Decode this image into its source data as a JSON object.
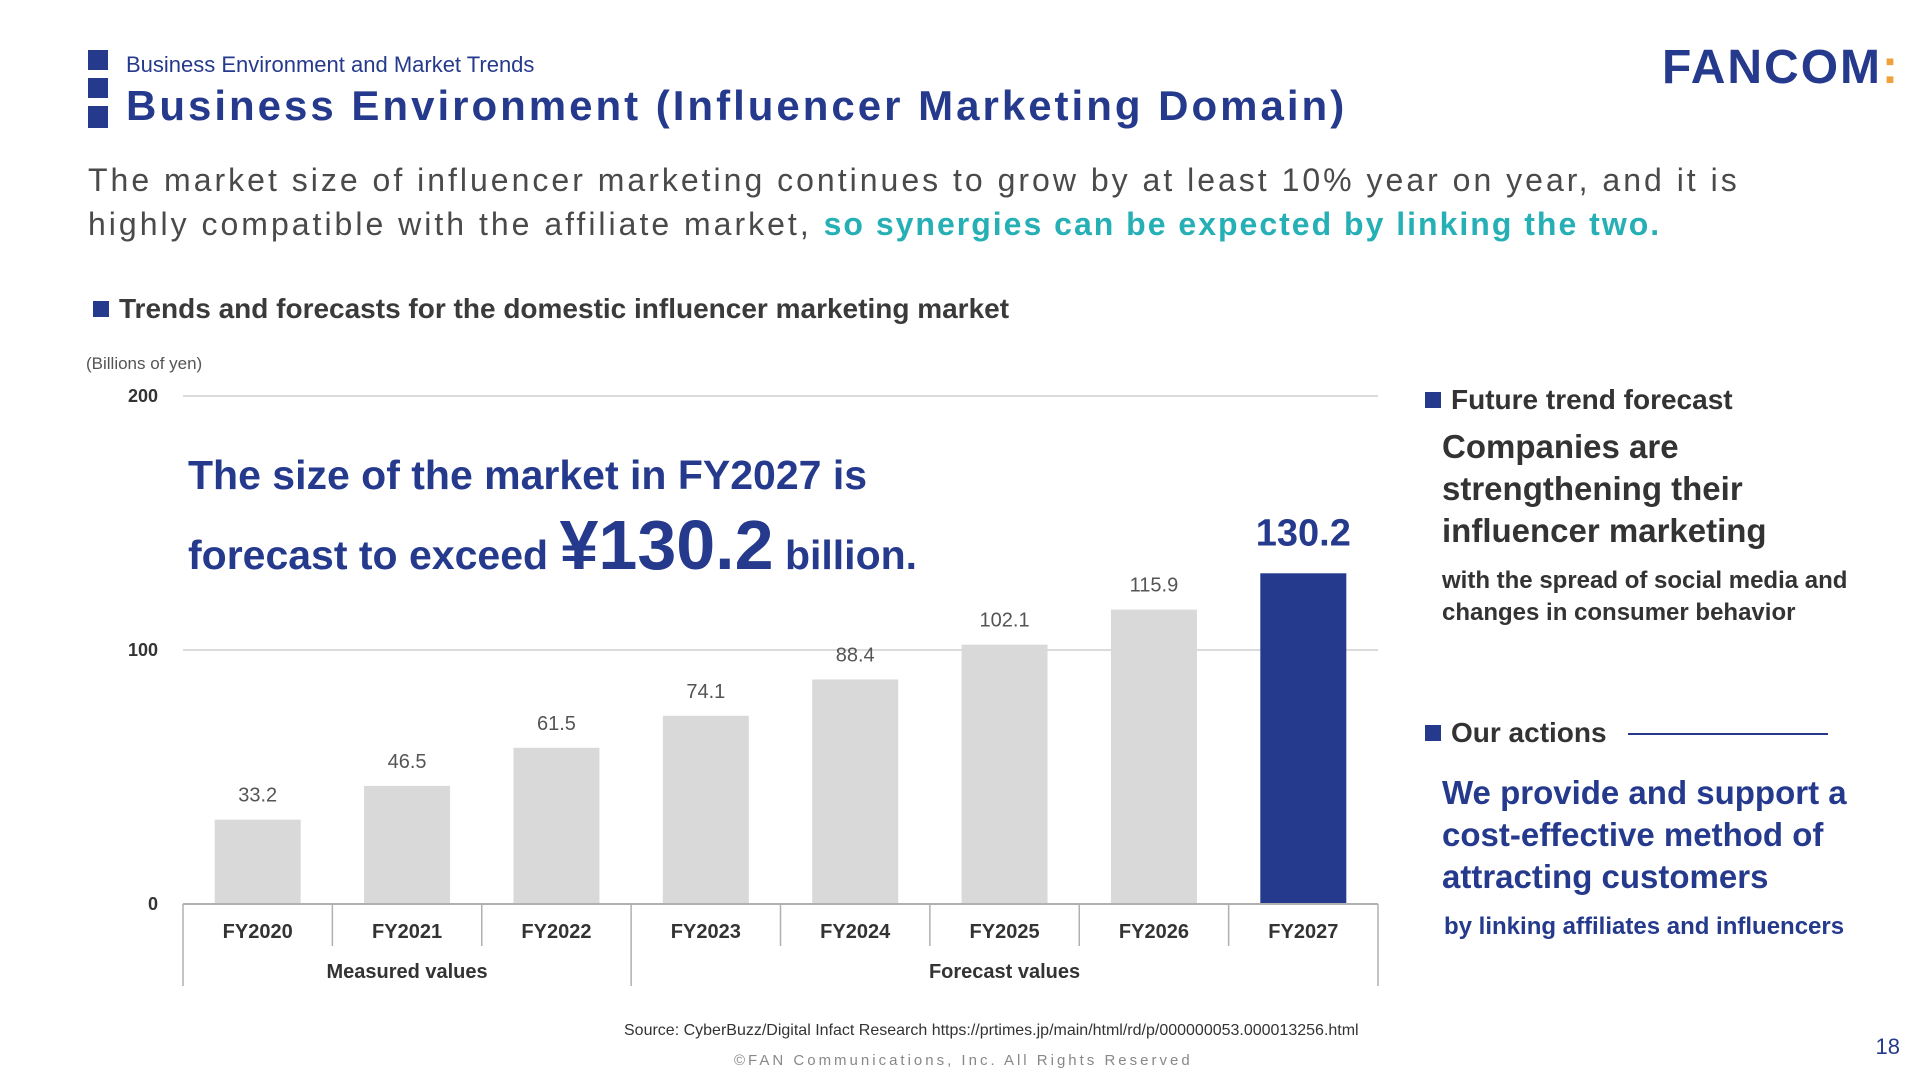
{
  "header": {
    "breadcrumb": "Business Environment and Market Trends",
    "title": "Business Environment (Influencer Marketing Domain)",
    "logo_text": "FANCOM",
    "logo_accent": ":"
  },
  "lead": {
    "text": "The market size of influencer marketing continues to grow by at least 10% year on year, and it is highly compatible with the affiliate market, ",
    "highlight": "so synergies can be expected by linking the two."
  },
  "section_title": "Trends and forecasts for the domestic influencer marketing market",
  "unit_label": "(Billions of yen)",
  "headline": {
    "line1": "The size of the market in FY2027 is",
    "pre": "forecast to exceed ",
    "amount": "¥130.2",
    "post": " billion."
  },
  "chart_data": {
    "type": "bar",
    "categories": [
      "FY2020",
      "FY2021",
      "FY2022",
      "FY2023",
      "FY2024",
      "FY2025",
      "FY2026",
      "FY2027"
    ],
    "values": [
      33.2,
      46.5,
      61.5,
      74.1,
      88.4,
      102.1,
      115.9,
      130.2
    ],
    "data_labels": [
      "33.2",
      "46.5",
      "61.5",
      "74.1",
      "88.4",
      "102.1",
      "115.9",
      "130.2"
    ],
    "highlight_index": 7,
    "ylim": [
      0,
      200
    ],
    "yticks": [
      0,
      100,
      200
    ],
    "grid": true,
    "groups": [
      {
        "label": "Measured values",
        "start": 0,
        "end": 2
      },
      {
        "label": "Forecast values",
        "start": 3,
        "end": 7
      }
    ],
    "colors": {
      "bar": "#d9d9d9",
      "highlight": "#253a8c",
      "grid": "#cfcfcf",
      "axis": "#b0b0b0"
    }
  },
  "right_panel": {
    "trend_heading": "Future trend forecast",
    "trend_text": "Companies are strengthening their influencer marketing",
    "trend_sub": "with the spread of social media and changes in consumer behavior",
    "actions_heading": "Our actions",
    "actions_text": "We provide and support a cost-effective method of attracting customers",
    "actions_sub": "by linking affiliates and influencers"
  },
  "footer": {
    "source": "Source: CyberBuzz/Digital Infact Research https://prtimes.jp/main/html/rd/p/000000053.000013256.html",
    "copyright": "©FAN Communications, Inc. All Rights Reserved",
    "page_number": "18"
  },
  "colors": {
    "brand": "#253a8c",
    "accent": "#26b0b5",
    "logo_accent": "#f0a23a"
  }
}
